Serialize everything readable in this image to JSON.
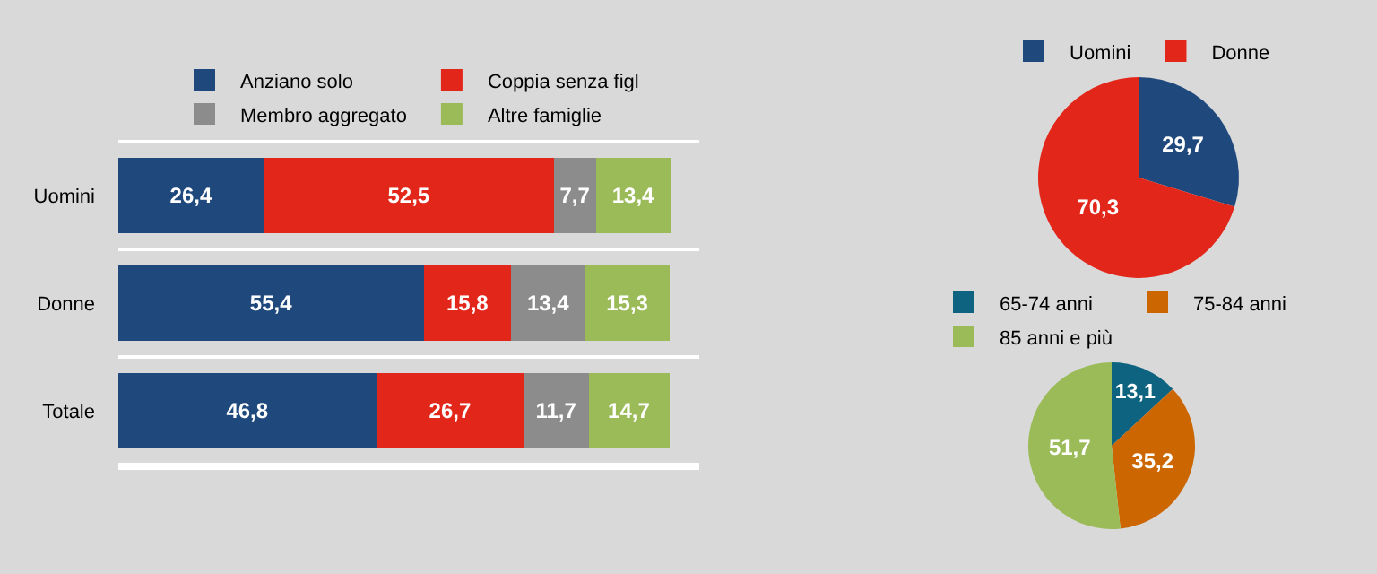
{
  "chart_data": [
    {
      "type": "bar",
      "orientation": "horizontal",
      "stacked": true,
      "legend": "top",
      "categories": [
        "Uomini",
        "Donne",
        "Totale"
      ],
      "series": [
        {
          "name": "Anziano solo",
          "color": "#1f497d",
          "values": [
            26.4,
            55.4,
            46.8
          ],
          "value_labels": [
            "26,4",
            "55,4",
            "46,8"
          ]
        },
        {
          "name": "Coppia senza figl",
          "color": "#e3261a",
          "values": [
            52.5,
            15.8,
            26.7
          ],
          "value_labels": [
            "52,5",
            "15,8",
            "26,7"
          ]
        },
        {
          "name": "Membro aggregato",
          "color": "#8c8c8c",
          "values": [
            7.7,
            13.4,
            11.7
          ],
          "value_labels": [
            "7,7",
            "13,4",
            "11,7"
          ]
        },
        {
          "name": "Altre famiglie",
          "color": "#9bbb59",
          "values": [
            13.4,
            15.3,
            14.7
          ],
          "value_labels": [
            "13,4",
            "15,3",
            "14,7"
          ]
        }
      ]
    },
    {
      "type": "pie",
      "legend": "top",
      "categories": [
        "Uomini",
        "Donne"
      ],
      "values": [
        29.7,
        70.3
      ],
      "value_labels": [
        "29,7",
        "70,3"
      ],
      "colors": [
        "#1f497d",
        "#e3261a"
      ]
    },
    {
      "type": "pie",
      "legend": "top",
      "categories": [
        "65-74 anni",
        "75-84 anni",
        "85 anni e più"
      ],
      "values": [
        13.1,
        35.2,
        51.7
      ],
      "value_labels": [
        "13,1",
        "35,2",
        "51,7"
      ],
      "colors": [
        "#0e6480",
        "#cc6600",
        "#9bbb59"
      ]
    }
  ]
}
